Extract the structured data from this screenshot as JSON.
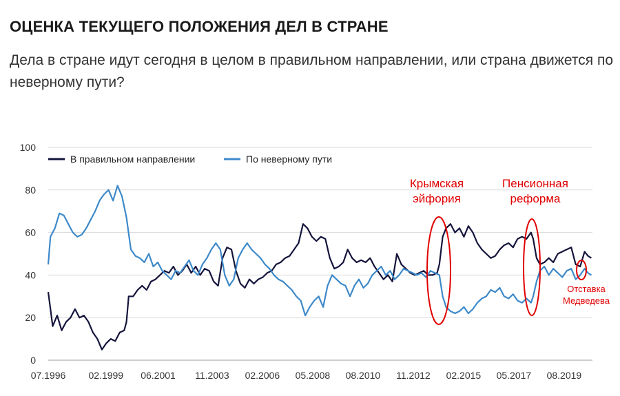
{
  "header": {
    "title": "ОЦЕНКА ТЕКУЩЕГО ПОЛОЖЕНИЯ ДЕЛ В СТРАНЕ",
    "subtitle": "Дела в стране идут сегодня в целом в правильном направлении, или страна движется по неверному пути?"
  },
  "chart_data": {
    "type": "line",
    "ylim": [
      0,
      100
    ],
    "yticks": [
      0,
      20,
      40,
      60,
      80,
      100
    ],
    "xlim": [
      1996.5,
      2020.85
    ],
    "xticks": [
      {
        "label": "07.1996",
        "x": 1996.5
      },
      {
        "label": "02.1999",
        "x": 1999.083
      },
      {
        "label": "06.2001",
        "x": 2001.417
      },
      {
        "label": "11.2003",
        "x": 2003.833
      },
      {
        "label": "02.2006",
        "x": 2006.083
      },
      {
        "label": "05.2008",
        "x": 2008.333
      },
      {
        "label": "08.2010",
        "x": 2010.583
      },
      {
        "label": "11.2012",
        "x": 2012.833
      },
      {
        "label": "02.2015",
        "x": 2015.083
      },
      {
        "label": "05.2017",
        "x": 2017.333
      },
      {
        "label": "08.2019",
        "x": 2019.583
      }
    ],
    "grid": "horizontal",
    "legend_position": "top-left",
    "series": [
      {
        "name": "В правильном направлении",
        "color": "#14143c",
        "points": [
          [
            1996.5,
            32
          ],
          [
            1996.7,
            16
          ],
          [
            1996.9,
            21
          ],
          [
            1997.1,
            14
          ],
          [
            1997.3,
            18
          ],
          [
            1997.5,
            20
          ],
          [
            1997.7,
            24
          ],
          [
            1997.9,
            20
          ],
          [
            1998.1,
            21
          ],
          [
            1998.3,
            18
          ],
          [
            1998.5,
            13
          ],
          [
            1998.7,
            10
          ],
          [
            1998.9,
            5
          ],
          [
            1999.1,
            8
          ],
          [
            1999.3,
            10
          ],
          [
            1999.5,
            9
          ],
          [
            1999.7,
            13
          ],
          [
            1999.9,
            14
          ],
          [
            2000.0,
            18
          ],
          [
            2000.1,
            30
          ],
          [
            2000.3,
            30
          ],
          [
            2000.5,
            33
          ],
          [
            2000.7,
            35
          ],
          [
            2000.9,
            33
          ],
          [
            2001.1,
            37
          ],
          [
            2001.3,
            38
          ],
          [
            2001.5,
            40
          ],
          [
            2001.7,
            42
          ],
          [
            2001.9,
            41
          ],
          [
            2002.1,
            44
          ],
          [
            2002.3,
            40
          ],
          [
            2002.5,
            42
          ],
          [
            2002.7,
            45
          ],
          [
            2002.9,
            41
          ],
          [
            2003.1,
            44
          ],
          [
            2003.3,
            40
          ],
          [
            2003.5,
            43
          ],
          [
            2003.7,
            42
          ],
          [
            2003.9,
            37
          ],
          [
            2004.1,
            35
          ],
          [
            2004.3,
            48
          ],
          [
            2004.5,
            53
          ],
          [
            2004.7,
            52
          ],
          [
            2004.9,
            42
          ],
          [
            2005.1,
            36
          ],
          [
            2005.3,
            34
          ],
          [
            2005.5,
            38
          ],
          [
            2005.7,
            36
          ],
          [
            2005.9,
            38
          ],
          [
            2006.1,
            39
          ],
          [
            2006.3,
            41
          ],
          [
            2006.5,
            42
          ],
          [
            2006.7,
            45
          ],
          [
            2006.9,
            46
          ],
          [
            2007.1,
            48
          ],
          [
            2007.3,
            49
          ],
          [
            2007.5,
            52
          ],
          [
            2007.7,
            55
          ],
          [
            2007.9,
            64
          ],
          [
            2008.1,
            62
          ],
          [
            2008.3,
            58
          ],
          [
            2008.5,
            56
          ],
          [
            2008.7,
            58
          ],
          [
            2008.9,
            57
          ],
          [
            2009.1,
            48
          ],
          [
            2009.3,
            43
          ],
          [
            2009.5,
            44
          ],
          [
            2009.7,
            46
          ],
          [
            2009.9,
            52
          ],
          [
            2010.1,
            48
          ],
          [
            2010.3,
            46
          ],
          [
            2010.5,
            47
          ],
          [
            2010.7,
            46
          ],
          [
            2010.9,
            48
          ],
          [
            2011.1,
            44
          ],
          [
            2011.3,
            41
          ],
          [
            2011.5,
            38
          ],
          [
            2011.7,
            40
          ],
          [
            2011.9,
            37
          ],
          [
            2012.1,
            50
          ],
          [
            2012.3,
            45
          ],
          [
            2012.5,
            43
          ],
          [
            2012.7,
            41
          ],
          [
            2012.9,
            40
          ],
          [
            2013.1,
            41
          ],
          [
            2013.3,
            42
          ],
          [
            2013.5,
            40
          ],
          [
            2013.7,
            40
          ],
          [
            2013.9,
            41
          ],
          [
            2014.0,
            45
          ],
          [
            2014.15,
            58
          ],
          [
            2014.3,
            62
          ],
          [
            2014.5,
            64
          ],
          [
            2014.7,
            60
          ],
          [
            2014.9,
            62
          ],
          [
            2015.1,
            58
          ],
          [
            2015.3,
            63
          ],
          [
            2015.5,
            60
          ],
          [
            2015.7,
            55
          ],
          [
            2015.9,
            52
          ],
          [
            2016.1,
            50
          ],
          [
            2016.3,
            48
          ],
          [
            2016.5,
            49
          ],
          [
            2016.7,
            52
          ],
          [
            2016.9,
            54
          ],
          [
            2017.1,
            55
          ],
          [
            2017.3,
            53
          ],
          [
            2017.5,
            57
          ],
          [
            2017.7,
            58
          ],
          [
            2017.9,
            57
          ],
          [
            2018.1,
            60
          ],
          [
            2018.2,
            57
          ],
          [
            2018.35,
            48
          ],
          [
            2018.5,
            45
          ],
          [
            2018.7,
            46
          ],
          [
            2018.9,
            48
          ],
          [
            2019.1,
            46
          ],
          [
            2019.3,
            50
          ],
          [
            2019.5,
            51
          ],
          [
            2019.7,
            52
          ],
          [
            2019.9,
            53
          ],
          [
            2020.1,
            45
          ],
          [
            2020.3,
            44
          ],
          [
            2020.5,
            51
          ],
          [
            2020.65,
            49
          ],
          [
            2020.8,
            48
          ]
        ]
      },
      {
        "name": "По неверному пути",
        "color": "#3d89c9",
        "points": [
          [
            1996.5,
            45
          ],
          [
            1996.6,
            58
          ],
          [
            1996.8,
            62
          ],
          [
            1997.0,
            69
          ],
          [
            1997.2,
            68
          ],
          [
            1997.4,
            64
          ],
          [
            1997.6,
            60
          ],
          [
            1997.8,
            58
          ],
          [
            1998.0,
            59
          ],
          [
            1998.2,
            62
          ],
          [
            1998.4,
            66
          ],
          [
            1998.6,
            70
          ],
          [
            1998.8,
            75
          ],
          [
            1999.0,
            78
          ],
          [
            1999.2,
            80
          ],
          [
            1999.4,
            75
          ],
          [
            1999.6,
            82
          ],
          [
            1999.8,
            77
          ],
          [
            2000.0,
            67
          ],
          [
            2000.2,
            52
          ],
          [
            2000.4,
            49
          ],
          [
            2000.6,
            48
          ],
          [
            2000.8,
            46
          ],
          [
            2001.0,
            50
          ],
          [
            2001.2,
            44
          ],
          [
            2001.4,
            46
          ],
          [
            2001.6,
            42
          ],
          [
            2001.8,
            40
          ],
          [
            2002.0,
            38
          ],
          [
            2002.2,
            42
          ],
          [
            2002.4,
            41
          ],
          [
            2002.6,
            44
          ],
          [
            2002.8,
            47
          ],
          [
            2003.0,
            42
          ],
          [
            2003.2,
            40
          ],
          [
            2003.4,
            45
          ],
          [
            2003.6,
            48
          ],
          [
            2003.8,
            52
          ],
          [
            2004.0,
            55
          ],
          [
            2004.2,
            52
          ],
          [
            2004.4,
            40
          ],
          [
            2004.6,
            35
          ],
          [
            2004.8,
            38
          ],
          [
            2005.0,
            48
          ],
          [
            2005.2,
            52
          ],
          [
            2005.4,
            55
          ],
          [
            2005.6,
            52
          ],
          [
            2005.8,
            50
          ],
          [
            2006.0,
            48
          ],
          [
            2006.2,
            45
          ],
          [
            2006.4,
            43
          ],
          [
            2006.6,
            40
          ],
          [
            2006.8,
            38
          ],
          [
            2007.0,
            37
          ],
          [
            2007.2,
            35
          ],
          [
            2007.4,
            33
          ],
          [
            2007.6,
            30
          ],
          [
            2007.8,
            28
          ],
          [
            2008.0,
            21
          ],
          [
            2008.2,
            25
          ],
          [
            2008.4,
            28
          ],
          [
            2008.6,
            30
          ],
          [
            2008.8,
            25
          ],
          [
            2009.0,
            35
          ],
          [
            2009.2,
            40
          ],
          [
            2009.4,
            38
          ],
          [
            2009.6,
            36
          ],
          [
            2009.8,
            35
          ],
          [
            2010.0,
            30
          ],
          [
            2010.2,
            35
          ],
          [
            2010.4,
            38
          ],
          [
            2010.6,
            34
          ],
          [
            2010.8,
            36
          ],
          [
            2011.0,
            40
          ],
          [
            2011.2,
            42
          ],
          [
            2011.4,
            44
          ],
          [
            2011.6,
            40
          ],
          [
            2011.8,
            42
          ],
          [
            2012.0,
            38
          ],
          [
            2012.2,
            40
          ],
          [
            2012.4,
            43
          ],
          [
            2012.6,
            42
          ],
          [
            2012.8,
            41
          ],
          [
            2013.0,
            40
          ],
          [
            2013.2,
            41
          ],
          [
            2013.4,
            39
          ],
          [
            2013.6,
            42
          ],
          [
            2013.8,
            41
          ],
          [
            2014.0,
            40
          ],
          [
            2014.15,
            30
          ],
          [
            2014.3,
            25
          ],
          [
            2014.5,
            23
          ],
          [
            2014.7,
            22
          ],
          [
            2014.9,
            23
          ],
          [
            2015.1,
            25
          ],
          [
            2015.3,
            22
          ],
          [
            2015.5,
            24
          ],
          [
            2015.7,
            27
          ],
          [
            2015.9,
            29
          ],
          [
            2016.1,
            30
          ],
          [
            2016.3,
            33
          ],
          [
            2016.5,
            32
          ],
          [
            2016.7,
            34
          ],
          [
            2016.9,
            30
          ],
          [
            2017.1,
            29
          ],
          [
            2017.3,
            31
          ],
          [
            2017.5,
            28
          ],
          [
            2017.7,
            27
          ],
          [
            2017.9,
            29
          ],
          [
            2018.1,
            27
          ],
          [
            2018.2,
            30
          ],
          [
            2018.35,
            37
          ],
          [
            2018.5,
            42
          ],
          [
            2018.7,
            44
          ],
          [
            2018.9,
            40
          ],
          [
            2019.1,
            43
          ],
          [
            2019.3,
            41
          ],
          [
            2019.5,
            39
          ],
          [
            2019.7,
            42
          ],
          [
            2019.9,
            43
          ],
          [
            2020.1,
            38
          ],
          [
            2020.3,
            40
          ],
          [
            2020.5,
            43
          ],
          [
            2020.65,
            41
          ],
          [
            2020.8,
            40
          ]
        ]
      }
    ],
    "annotations": [
      {
        "text": [
          "Крымская",
          "эйфория"
        ],
        "x": 2014.4,
        "color": "#e00000"
      },
      {
        "text": [
          "Пенсионная",
          "реформа"
        ],
        "x": 2018.25,
        "color": "#e00000"
      },
      {
        "text": [
          "Отставка",
          "Медведева"
        ],
        "x": 2020.1,
        "color": "#e00000"
      }
    ]
  }
}
